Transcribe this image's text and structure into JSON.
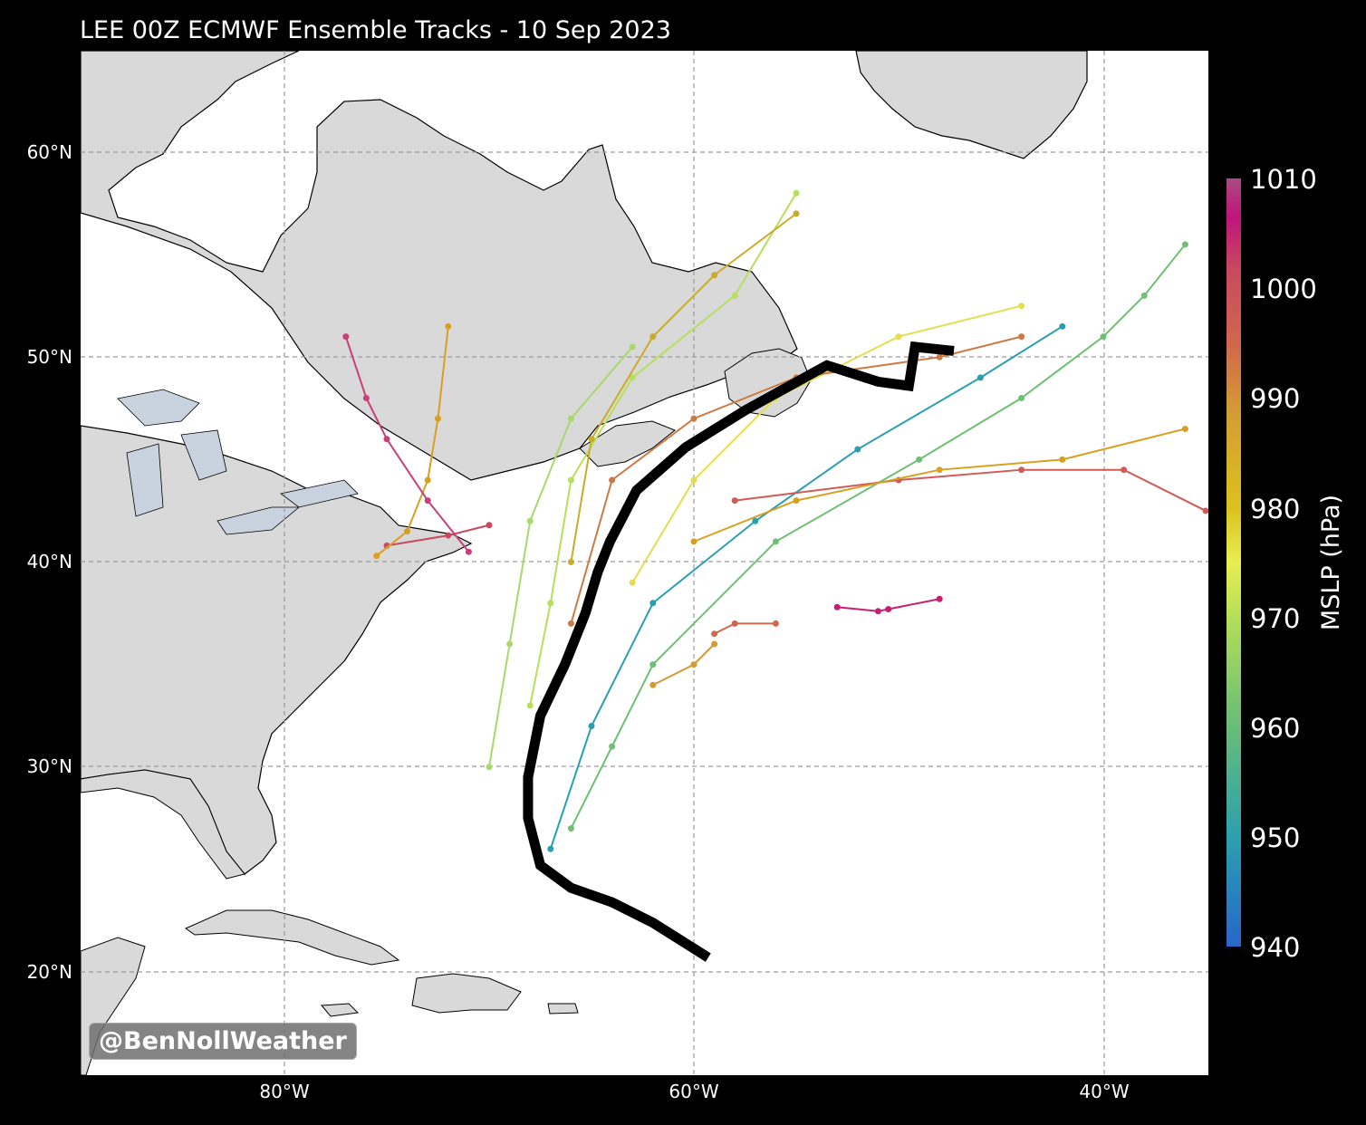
{
  "title": "LEE 00Z ECMWF Ensemble Tracks - 10 Sep 2023",
  "watermark": "@BenNollWeather",
  "colorbar": {
    "label": "MSLP (hPa)",
    "ticks": [
      "1010",
      "1000",
      "990",
      "980",
      "970",
      "960",
      "950",
      "940"
    ],
    "range": [
      940,
      1010
    ]
  },
  "axes": {
    "lat_labels": [
      "60°N",
      "50°N",
      "40°N",
      "30°N",
      "20°N"
    ],
    "lon_labels": [
      "80°W",
      "60°W",
      "40°W"
    ]
  },
  "colors": {
    "background": "#000000",
    "ocean": "#ffffff",
    "land": "#d9d9d9",
    "grid": "#9a9a9a",
    "mean_track": "#000000"
  },
  "chart_data": {
    "type": "map-tracks",
    "extent": {
      "lon": [
        -90,
        -35
      ],
      "lat": [
        15,
        65
      ]
    },
    "value_units": "hPa",
    "mean_track": [
      [
        -59.3,
        20.7
      ],
      [
        -62,
        22.4
      ],
      [
        -64,
        23.4
      ],
      [
        -66,
        24.1
      ],
      [
        -67.5,
        25.2
      ],
      [
        -68.1,
        27.5
      ],
      [
        -68.1,
        29.5
      ],
      [
        -67.5,
        32.5
      ],
      [
        -66.3,
        35
      ],
      [
        -65.3,
        37.5
      ],
      [
        -64.7,
        39.5
      ],
      [
        -64.1,
        41
      ],
      [
        -62.8,
        43.5
      ],
      [
        -60.4,
        45.6
      ],
      [
        -57.5,
        47.4
      ],
      [
        -53.5,
        49.6
      ],
      [
        -51,
        48.8
      ],
      [
        -49.5,
        48.6
      ],
      [
        -49.2,
        50.5
      ],
      [
        -47.3,
        50.3
      ]
    ],
    "members": [
      {
        "color": "#c81e71",
        "points": [
          [
            -53,
            37.8
          ],
          [
            -51,
            37.6
          ],
          [
            -50.5,
            37.7
          ],
          [
            -48,
            38.2
          ]
        ]
      },
      {
        "color": "#d0694c",
        "points": [
          [
            -59,
            36.5
          ],
          [
            -58,
            37
          ],
          [
            -56,
            37
          ]
        ]
      },
      {
        "color": "#d49a35",
        "points": [
          [
            -62,
            34
          ],
          [
            -60,
            35
          ],
          [
            -59,
            36
          ]
        ]
      },
      {
        "color": "#6fbf74",
        "points": [
          [
            -66,
            27
          ],
          [
            -64,
            31
          ],
          [
            -62,
            35
          ],
          [
            -56,
            41
          ],
          [
            -49,
            45
          ],
          [
            -44,
            48
          ],
          [
            -40,
            51
          ],
          [
            -38,
            53
          ],
          [
            -36,
            55.5
          ]
        ]
      },
      {
        "color": "#2a9fb0",
        "points": [
          [
            -67,
            26
          ],
          [
            -65,
            32
          ],
          [
            -62,
            38
          ],
          [
            -57,
            42
          ],
          [
            -52,
            45.5
          ],
          [
            -46,
            49
          ],
          [
            -42,
            51.5
          ]
        ]
      },
      {
        "color": "#c84a5e",
        "points": [
          [
            -70,
            41.8
          ],
          [
            -72,
            41.3
          ],
          [
            -75,
            40.8
          ]
        ]
      },
      {
        "color": "#d8a020",
        "points": [
          [
            -75.5,
            40.3
          ],
          [
            -74,
            41.5
          ],
          [
            -73,
            44
          ],
          [
            -72.5,
            47
          ],
          [
            -72,
            51.5
          ]
        ]
      },
      {
        "color": "#c8407a",
        "points": [
          [
            -71,
            40.5
          ],
          [
            -73,
            43
          ],
          [
            -75,
            46
          ],
          [
            -76,
            48
          ],
          [
            -77,
            51
          ]
        ]
      },
      {
        "color": "#d05a55",
        "points": [
          [
            -58,
            43
          ],
          [
            -50,
            44
          ],
          [
            -44,
            44.5
          ],
          [
            -39,
            44.5
          ],
          [
            -35,
            42.5
          ]
        ]
      },
      {
        "color": "#d8a020",
        "points": [
          [
            -60,
            41
          ],
          [
            -55,
            43
          ],
          [
            -48,
            44.5
          ],
          [
            -42,
            45
          ],
          [
            -36,
            46.5
          ]
        ]
      },
      {
        "color": "#e3de50",
        "points": [
          [
            -63,
            39
          ],
          [
            -60,
            44
          ],
          [
            -56,
            48
          ],
          [
            -50,
            51
          ],
          [
            -44,
            52.5
          ]
        ]
      },
      {
        "color": "#cc7a45",
        "points": [
          [
            -66,
            37
          ],
          [
            -64,
            44
          ],
          [
            -60,
            47
          ],
          [
            -55,
            49
          ],
          [
            -48,
            50
          ],
          [
            -44,
            51
          ]
        ]
      },
      {
        "color": "#b6df5a",
        "points": [
          [
            -68,
            33
          ],
          [
            -67,
            38
          ],
          [
            -66,
            44
          ],
          [
            -63,
            49
          ],
          [
            -58,
            53
          ],
          [
            -55,
            58
          ]
        ]
      },
      {
        "color": "#c9ac2a",
        "points": [
          [
            -66,
            40
          ],
          [
            -65,
            46
          ],
          [
            -62,
            51
          ],
          [
            -59,
            54
          ],
          [
            -55,
            57
          ]
        ]
      },
      {
        "color": "#a8d96a",
        "points": [
          [
            -70,
            30
          ],
          [
            -69,
            36
          ],
          [
            -68,
            42
          ],
          [
            -66,
            47
          ],
          [
            -63,
            50.5
          ]
        ]
      }
    ]
  }
}
